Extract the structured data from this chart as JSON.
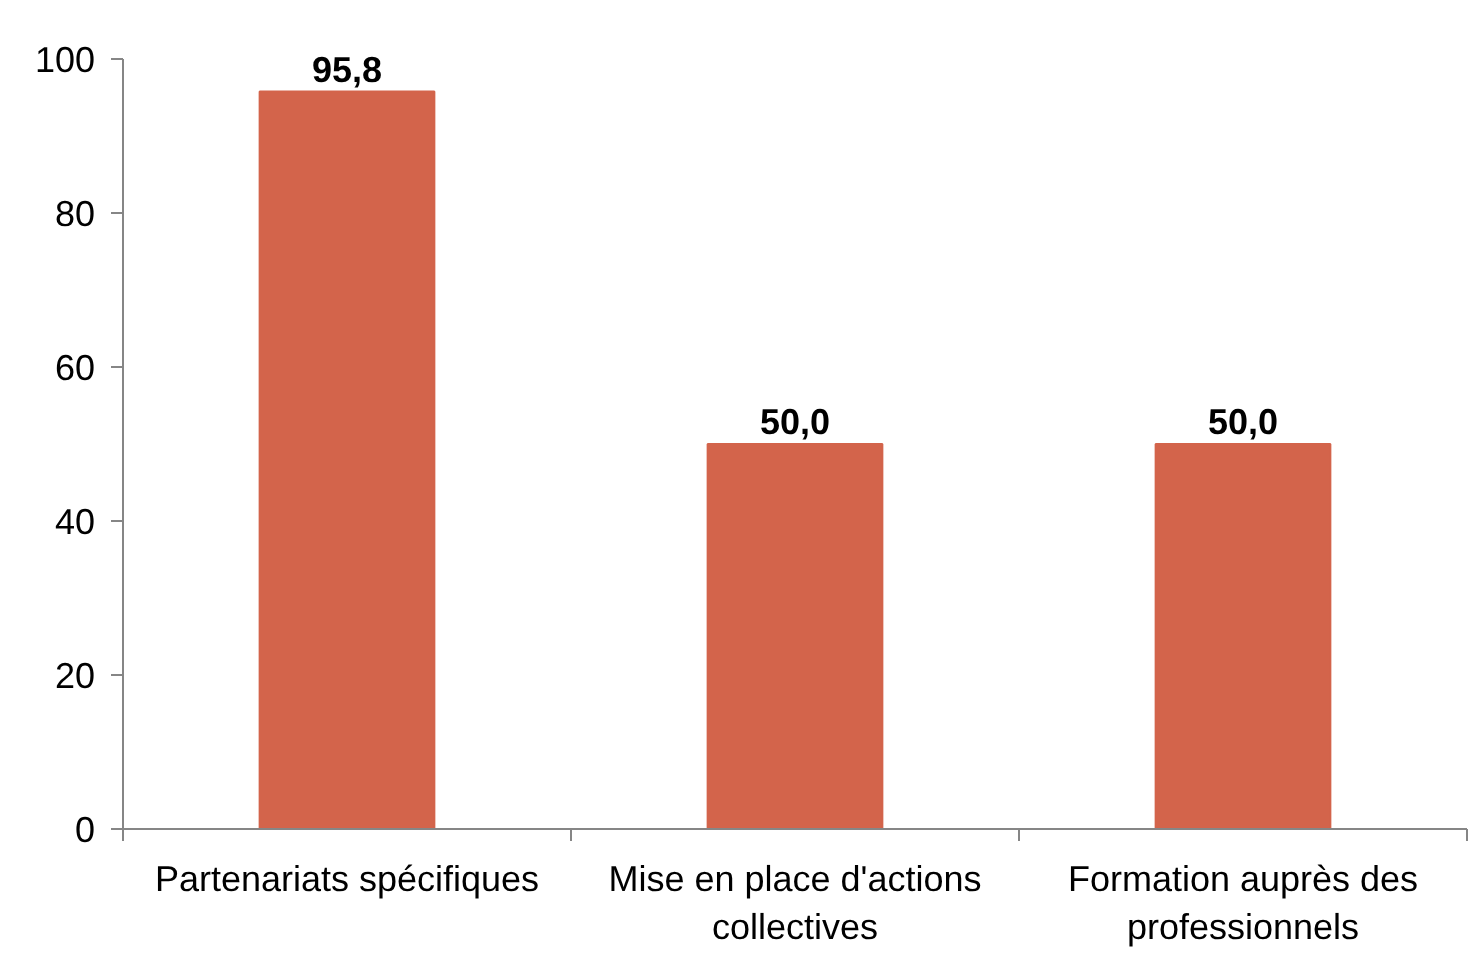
{
  "chart_data": {
    "type": "bar",
    "categories": [
      "Partenariats spécifiques",
      "Mise en place d'actions collectives",
      "Formation auprès des professionnels"
    ],
    "values": [
      95.8,
      50.0,
      50.0
    ],
    "value_labels": [
      "95,8",
      "50,0",
      "50,0"
    ],
    "color": "#d3644b",
    "ylim": [
      0,
      100
    ],
    "yticks": [
      0,
      20,
      40,
      60,
      80,
      100
    ]
  }
}
